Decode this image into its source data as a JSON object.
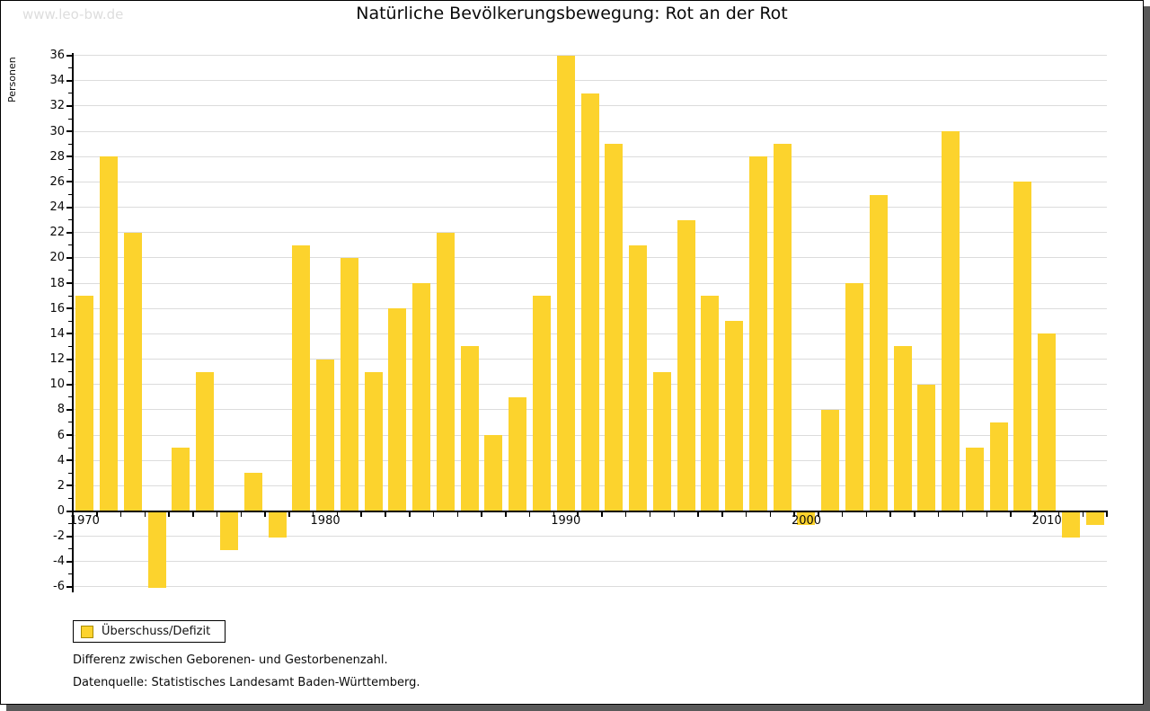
{
  "watermark": "www.leo-bw.de",
  "title": "Natürliche Bevölkerungsbewegung: Rot an der Rot",
  "legend": {
    "label": "Überschuss/Defizit"
  },
  "footnotes": [
    "Differenz zwischen Geborenen- und Gestorbenenzahl.",
    "Datenquelle: Statistisches Landesamt Baden-Württemberg."
  ],
  "colors": {
    "bar": "#FCD32D",
    "bar_border": "#A98C00",
    "grid": "#DCDCDC",
    "axis": "#000000",
    "watermark": "#DDDDDD",
    "shadow": "#595959"
  },
  "chart_data": {
    "type": "bar",
    "title": "Natürliche Bevölkerungsbewegung: Rot an der Rot",
    "xlabel": "",
    "ylabel": "Personen",
    "ylim": [
      -6,
      36
    ],
    "ytick_step": 2,
    "grid": true,
    "legend_position": "bottom-left",
    "series_name": "Überschuss/Defizit",
    "xtick_labels": [
      1970,
      1980,
      1990,
      2000,
      2010
    ],
    "x": [
      1970,
      1971,
      1972,
      1973,
      1974,
      1975,
      1976,
      1977,
      1978,
      1979,
      1980,
      1981,
      1982,
      1983,
      1984,
      1985,
      1986,
      1987,
      1988,
      1989,
      1990,
      1991,
      1992,
      1993,
      1994,
      1995,
      1996,
      1997,
      1998,
      1999,
      2000,
      2001,
      2002,
      2003,
      2004,
      2005,
      2006,
      2007,
      2008,
      2009,
      2010,
      2011,
      2012
    ],
    "values": [
      17,
      28,
      22,
      -6,
      5,
      11,
      -3,
      3,
      -2,
      21,
      12,
      20,
      11,
      16,
      18,
      22,
      13,
      6,
      9,
      17,
      36,
      33,
      29,
      21,
      11,
      23,
      17,
      15,
      28,
      29,
      -1,
      8,
      18,
      25,
      13,
      10,
      30,
      5,
      7,
      26,
      14,
      -2,
      -1
    ]
  }
}
